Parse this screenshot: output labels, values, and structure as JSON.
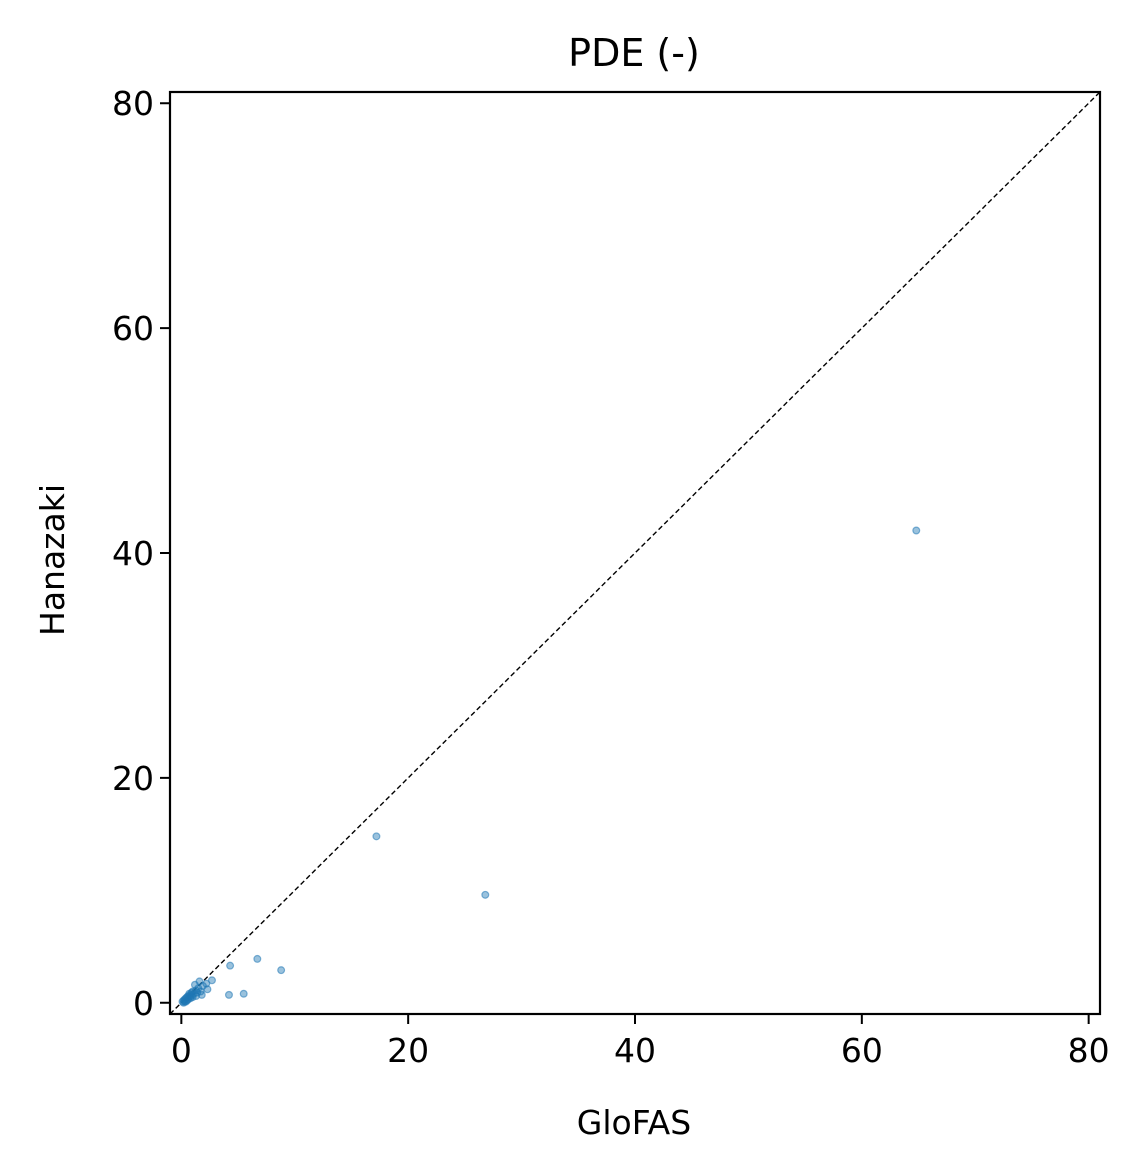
{
  "chart_data": {
    "type": "scatter",
    "title": "PDE (-)",
    "xlabel": "GloFAS",
    "ylabel": "Hanazaki",
    "xlim": [
      -1,
      81
    ],
    "ylim": [
      -1,
      81
    ],
    "xticks": [
      0,
      20,
      40,
      60,
      80
    ],
    "yticks": [
      0,
      20,
      40,
      60,
      80
    ],
    "grid": false,
    "reference_line": {
      "style": "dashed",
      "from": [
        -1,
        -1
      ],
      "to": [
        81,
        81
      ],
      "color": "#000000"
    },
    "point_color": "#1f77b4",
    "series": [
      {
        "values": [
          {
            "x": 64.8,
            "y": 42.0
          },
          {
            "x": 17.2,
            "y": 14.8
          },
          {
            "x": 26.8,
            "y": 9.6
          },
          {
            "x": 6.7,
            "y": 3.9
          },
          {
            "x": 4.3,
            "y": 3.3
          },
          {
            "x": 8.8,
            "y": 2.9
          },
          {
            "x": 5.5,
            "y": 0.8
          },
          {
            "x": 4.2,
            "y": 0.7
          },
          {
            "x": 2.7,
            "y": 2.0
          },
          {
            "x": 2.2,
            "y": 1.7
          },
          {
            "x": 2.3,
            "y": 1.2
          },
          {
            "x": 1.9,
            "y": 1.5
          },
          {
            "x": 1.6,
            "y": 1.9
          },
          {
            "x": 1.5,
            "y": 1.3
          },
          {
            "x": 1.4,
            "y": 0.9
          },
          {
            "x": 1.3,
            "y": 1.1
          },
          {
            "x": 1.2,
            "y": 1.6
          },
          {
            "x": 1.1,
            "y": 0.8
          },
          {
            "x": 1.0,
            "y": 1.0
          },
          {
            "x": 0.9,
            "y": 0.6
          },
          {
            "x": 0.9,
            "y": 0.9
          },
          {
            "x": 0.8,
            "y": 0.7
          },
          {
            "x": 0.8,
            "y": 0.4
          },
          {
            "x": 0.7,
            "y": 0.8
          },
          {
            "x": 0.7,
            "y": 0.5
          },
          {
            "x": 0.6,
            "y": 0.6
          },
          {
            "x": 0.6,
            "y": 0.3
          },
          {
            "x": 0.5,
            "y": 0.5
          },
          {
            "x": 0.5,
            "y": 0.2
          },
          {
            "x": 0.4,
            "y": 0.4
          },
          {
            "x": 0.4,
            "y": 0.1
          },
          {
            "x": 0.3,
            "y": 0.3
          },
          {
            "x": 0.3,
            "y": 0.1
          },
          {
            "x": 0.2,
            "y": 0.2
          },
          {
            "x": 0.2,
            "y": 0.0
          },
          {
            "x": 0.1,
            "y": 0.1
          },
          {
            "x": 1.7,
            "y": 1.0
          },
          {
            "x": 1.8,
            "y": 0.7
          },
          {
            "x": 1.3,
            "y": 0.6
          },
          {
            "x": 1.0,
            "y": 0.5
          }
        ]
      }
    ]
  }
}
